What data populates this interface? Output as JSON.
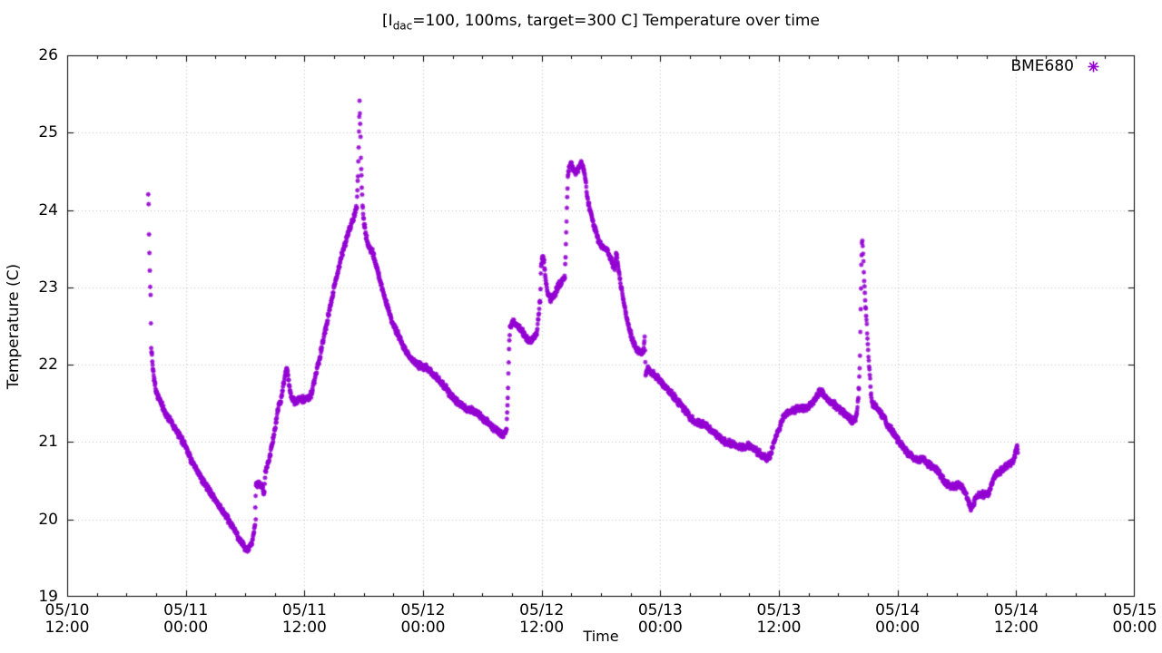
{
  "title": {
    "pre": "[I",
    "sub": "dac",
    "post": "=100, 100ms, target=300 C] Temperature over time"
  },
  "legend": {
    "label": "BME680",
    "marker": "asterisk-icon"
  },
  "colors": {
    "marker": "#9400d3",
    "grid": "#c4c4c4",
    "axis": "#000000",
    "background": "#ffffff",
    "text": "#000000"
  },
  "axes": {
    "x": {
      "label": "Time",
      "range_hours": [
        0,
        108
      ],
      "major_step_hours": 12,
      "minor_step_hours": 3,
      "ticks": [
        {
          "t": 0,
          "line1": "05/10",
          "line2": "12:00"
        },
        {
          "t": 12,
          "line1": "05/11",
          "line2": "00:00"
        },
        {
          "t": 24,
          "line1": "05/11",
          "line2": "12:00"
        },
        {
          "t": 36,
          "line1": "05/12",
          "line2": "00:00"
        },
        {
          "t": 48,
          "line1": "05/12",
          "line2": "12:00"
        },
        {
          "t": 60,
          "line1": "05/13",
          "line2": "00:00"
        },
        {
          "t": 72,
          "line1": "05/13",
          "line2": "12:00"
        },
        {
          "t": 84,
          "line1": "05/14",
          "line2": "00:00"
        },
        {
          "t": 96,
          "line1": "05/14",
          "line2": "12:00"
        },
        {
          "t": 108,
          "line1": "05/15",
          "line2": "00:00"
        }
      ]
    },
    "y": {
      "label": "Temperature (C)",
      "range": [
        19,
        26
      ],
      "ticks": [
        "19",
        "20",
        "21",
        "22",
        "23",
        "24",
        "25",
        "26"
      ]
    }
  },
  "chart_data": {
    "type": "scatter",
    "title": "[I_dac=100, 100ms, target=300 C] Temperature over time",
    "xlabel": "Time",
    "ylabel": "Temperature (C)",
    "x_unit": "hours since 05/10 12:00",
    "xlim_hours": [
      0,
      108
    ],
    "ylim": [
      19,
      26
    ],
    "grid": "dotted",
    "legend_position": "top-right-inside",
    "series": [
      {
        "name": "BME680",
        "color": "#9400d3",
        "marker": "asterisk",
        "keypoints": [
          [
            8.2,
            24.2
          ],
          [
            8.24,
            24.05
          ],
          [
            8.28,
            23.7
          ],
          [
            8.32,
            23.45
          ],
          [
            8.36,
            23.2
          ],
          [
            8.4,
            23.0
          ],
          [
            8.44,
            22.9
          ],
          [
            8.5,
            22.2
          ],
          [
            8.58,
            22.15
          ],
          [
            8.64,
            22.0
          ],
          [
            8.72,
            21.9
          ],
          [
            9.0,
            21.65
          ],
          [
            9.5,
            21.5
          ],
          [
            10.0,
            21.35
          ],
          [
            10.5,
            21.28
          ],
          [
            11.0,
            21.15
          ],
          [
            11.5,
            21.05
          ],
          [
            12.0,
            20.95
          ],
          [
            12.5,
            20.78
          ],
          [
            13.0,
            20.65
          ],
          [
            13.5,
            20.55
          ],
          [
            14.0,
            20.45
          ],
          [
            14.5,
            20.35
          ],
          [
            15.0,
            20.25
          ],
          [
            15.5,
            20.15
          ],
          [
            16.0,
            20.05
          ],
          [
            16.5,
            19.95
          ],
          [
            17.0,
            19.85
          ],
          [
            17.4,
            19.75
          ],
          [
            17.8,
            19.66
          ],
          [
            18.1,
            19.6
          ],
          [
            18.4,
            19.62
          ],
          [
            18.7,
            19.72
          ],
          [
            18.9,
            19.85
          ],
          [
            19.0,
            19.95
          ],
          [
            19.1,
            20.45
          ],
          [
            19.4,
            20.46
          ],
          [
            19.7,
            20.42
          ],
          [
            19.95,
            20.35
          ],
          [
            20.05,
            20.62
          ],
          [
            20.3,
            20.72
          ],
          [
            20.6,
            20.88
          ],
          [
            20.9,
            21.08
          ],
          [
            21.2,
            21.32
          ],
          [
            21.4,
            21.48
          ],
          [
            21.6,
            21.52
          ],
          [
            21.8,
            21.68
          ],
          [
            22.0,
            21.82
          ],
          [
            22.2,
            21.95
          ],
          [
            22.35,
            21.88
          ],
          [
            22.5,
            21.7
          ],
          [
            22.65,
            21.58
          ],
          [
            23.0,
            21.52
          ],
          [
            23.5,
            21.55
          ],
          [
            24.0,
            21.55
          ],
          [
            24.4,
            21.57
          ],
          [
            24.7,
            21.62
          ],
          [
            25.0,
            21.78
          ],
          [
            25.4,
            22.0
          ],
          [
            25.8,
            22.25
          ],
          [
            26.2,
            22.5
          ],
          [
            26.6,
            22.75
          ],
          [
            27.0,
            23.0
          ],
          [
            27.4,
            23.22
          ],
          [
            27.8,
            23.42
          ],
          [
            28.2,
            23.6
          ],
          [
            28.6,
            23.78
          ],
          [
            29.0,
            23.92
          ],
          [
            29.3,
            24.05
          ],
          [
            29.42,
            24.45
          ],
          [
            29.52,
            25.0
          ],
          [
            29.58,
            25.4
          ],
          [
            29.64,
            25.12
          ],
          [
            29.72,
            24.7
          ],
          [
            29.8,
            24.3
          ],
          [
            29.88,
            24.05
          ],
          [
            30.0,
            23.85
          ],
          [
            30.3,
            23.62
          ],
          [
            30.6,
            23.5
          ],
          [
            30.9,
            23.45
          ],
          [
            31.2,
            23.32
          ],
          [
            31.6,
            23.12
          ],
          [
            32.0,
            22.92
          ],
          [
            32.5,
            22.7
          ],
          [
            33.0,
            22.52
          ],
          [
            33.5,
            22.38
          ],
          [
            34.0,
            22.25
          ],
          [
            34.5,
            22.12
          ],
          [
            35.0,
            22.05
          ],
          [
            35.5,
            22.0
          ],
          [
            36.0,
            21.97
          ],
          [
            36.6,
            21.95
          ],
          [
            37.2,
            21.85
          ],
          [
            37.8,
            21.78
          ],
          [
            38.4,
            21.68
          ],
          [
            39.0,
            21.58
          ],
          [
            39.6,
            21.5
          ],
          [
            40.2,
            21.45
          ],
          [
            40.8,
            21.42
          ],
          [
            41.4,
            21.38
          ],
          [
            42.0,
            21.3
          ],
          [
            42.6,
            21.25
          ],
          [
            43.2,
            21.18
          ],
          [
            43.7,
            21.12
          ],
          [
            44.1,
            21.1
          ],
          [
            44.45,
            21.18
          ],
          [
            44.6,
            21.7
          ],
          [
            44.7,
            22.2
          ],
          [
            44.8,
            22.48
          ],
          [
            45.1,
            22.55
          ],
          [
            45.5,
            22.52
          ],
          [
            45.9,
            22.45
          ],
          [
            46.3,
            22.38
          ],
          [
            46.7,
            22.3
          ],
          [
            47.1,
            22.33
          ],
          [
            47.5,
            22.4
          ],
          [
            47.85,
            22.85
          ],
          [
            47.95,
            23.3
          ],
          [
            48.1,
            23.4
          ],
          [
            48.25,
            23.32
          ],
          [
            48.45,
            23.05
          ],
          [
            48.65,
            22.9
          ],
          [
            48.95,
            22.85
          ],
          [
            49.25,
            22.9
          ],
          [
            49.55,
            22.98
          ],
          [
            49.85,
            23.05
          ],
          [
            50.15,
            23.1
          ],
          [
            50.35,
            23.12
          ],
          [
            50.45,
            23.55
          ],
          [
            50.55,
            24.0
          ],
          [
            50.65,
            24.45
          ],
          [
            50.8,
            24.55
          ],
          [
            51.0,
            24.6
          ],
          [
            51.25,
            24.52
          ],
          [
            51.5,
            24.48
          ],
          [
            51.75,
            24.55
          ],
          [
            52.0,
            24.6
          ],
          [
            52.25,
            24.52
          ],
          [
            52.45,
            24.4
          ],
          [
            52.6,
            24.15
          ],
          [
            52.9,
            24.0
          ],
          [
            53.2,
            23.85
          ],
          [
            53.5,
            23.7
          ],
          [
            53.8,
            23.58
          ],
          [
            54.2,
            23.52
          ],
          [
            54.6,
            23.48
          ],
          [
            54.9,
            23.4
          ],
          [
            55.2,
            23.3
          ],
          [
            55.4,
            23.25
          ],
          [
            55.55,
            23.45
          ],
          [
            55.7,
            23.3
          ],
          [
            56.0,
            23.05
          ],
          [
            56.3,
            22.82
          ],
          [
            56.6,
            22.6
          ],
          [
            56.9,
            22.45
          ],
          [
            57.2,
            22.32
          ],
          [
            57.5,
            22.22
          ],
          [
            57.8,
            22.17
          ],
          [
            58.1,
            22.15
          ],
          [
            58.3,
            22.18
          ],
          [
            58.42,
            22.35
          ],
          [
            58.52,
            21.88
          ],
          [
            58.75,
            21.95
          ],
          [
            59.0,
            21.92
          ],
          [
            59.4,
            21.86
          ],
          [
            59.8,
            21.82
          ],
          [
            60.2,
            21.76
          ],
          [
            60.6,
            21.7
          ],
          [
            61.0,
            21.64
          ],
          [
            61.4,
            21.58
          ],
          [
            61.8,
            21.52
          ],
          [
            62.2,
            21.46
          ],
          [
            62.6,
            21.4
          ],
          [
            63.0,
            21.32
          ],
          [
            63.4,
            21.27
          ],
          [
            63.8,
            21.25
          ],
          [
            64.2,
            21.24
          ],
          [
            64.6,
            21.21
          ],
          [
            65.0,
            21.17
          ],
          [
            65.4,
            21.12
          ],
          [
            65.8,
            21.08
          ],
          [
            66.2,
            21.03
          ],
          [
            66.6,
            21.0
          ],
          [
            67.0,
            20.98
          ],
          [
            67.4,
            20.96
          ],
          [
            67.8,
            20.95
          ],
          [
            68.2,
            20.94
          ],
          [
            68.6,
            20.93
          ],
          [
            68.9,
            20.97
          ],
          [
            69.2,
            20.95
          ],
          [
            69.6,
            20.9
          ],
          [
            70.0,
            20.86
          ],
          [
            70.4,
            20.81
          ],
          [
            70.8,
            20.79
          ],
          [
            71.1,
            20.83
          ],
          [
            71.4,
            20.95
          ],
          [
            71.7,
            21.06
          ],
          [
            72.0,
            21.16
          ],
          [
            72.3,
            21.28
          ],
          [
            72.6,
            21.35
          ],
          [
            73.0,
            21.39
          ],
          [
            73.5,
            21.41
          ],
          [
            74.0,
            21.43
          ],
          [
            74.5,
            21.44
          ],
          [
            75.0,
            21.46
          ],
          [
            75.4,
            21.51
          ],
          [
            75.7,
            21.56
          ],
          [
            76.0,
            21.62
          ],
          [
            76.25,
            21.66
          ],
          [
            76.5,
            21.62
          ],
          [
            76.8,
            21.56
          ],
          [
            77.1,
            21.53
          ],
          [
            77.5,
            21.5
          ],
          [
            77.9,
            21.46
          ],
          [
            78.3,
            21.41
          ],
          [
            78.7,
            21.36
          ],
          [
            79.1,
            21.31
          ],
          [
            79.45,
            21.26
          ],
          [
            79.75,
            21.3
          ],
          [
            79.95,
            21.45
          ],
          [
            80.1,
            21.72
          ],
          [
            80.2,
            22.1
          ],
          [
            80.28,
            22.7
          ],
          [
            80.34,
            23.3
          ],
          [
            80.4,
            23.6
          ],
          [
            80.48,
            23.55
          ],
          [
            80.56,
            23.3
          ],
          [
            80.66,
            23.0
          ],
          [
            80.76,
            22.78
          ],
          [
            80.86,
            22.56
          ],
          [
            80.96,
            22.35
          ],
          [
            81.06,
            22.08
          ],
          [
            81.16,
            21.95
          ],
          [
            81.3,
            21.62
          ],
          [
            81.5,
            21.5
          ],
          [
            81.8,
            21.46
          ],
          [
            82.1,
            21.42
          ],
          [
            82.4,
            21.36
          ],
          [
            82.7,
            21.3
          ],
          [
            83.0,
            21.22
          ],
          [
            83.4,
            21.15
          ],
          [
            83.8,
            21.08
          ],
          [
            84.2,
            21.0
          ],
          [
            84.6,
            20.92
          ],
          [
            85.0,
            20.86
          ],
          [
            85.4,
            20.81
          ],
          [
            85.8,
            20.77
          ],
          [
            86.1,
            20.76
          ],
          [
            86.4,
            20.79
          ],
          [
            86.7,
            20.76
          ],
          [
            87.0,
            20.73
          ],
          [
            87.4,
            20.7
          ],
          [
            87.8,
            20.66
          ],
          [
            88.2,
            20.6
          ],
          [
            88.6,
            20.52
          ],
          [
            89.0,
            20.46
          ],
          [
            89.4,
            20.43
          ],
          [
            89.8,
            20.41
          ],
          [
            90.1,
            20.45
          ],
          [
            90.4,
            20.43
          ],
          [
            90.7,
            20.39
          ],
          [
            91.0,
            20.3
          ],
          [
            91.2,
            20.21
          ],
          [
            91.45,
            20.15
          ],
          [
            91.7,
            20.2
          ],
          [
            91.9,
            20.27
          ],
          [
            92.2,
            20.31
          ],
          [
            92.6,
            20.33
          ],
          [
            93.0,
            20.31
          ],
          [
            93.3,
            20.36
          ],
          [
            93.55,
            20.48
          ],
          [
            93.8,
            20.57
          ],
          [
            94.1,
            20.6
          ],
          [
            94.4,
            20.62
          ],
          [
            94.7,
            20.65
          ],
          [
            95.0,
            20.68
          ],
          [
            95.3,
            20.71
          ],
          [
            95.6,
            20.74
          ],
          [
            95.85,
            20.8
          ],
          [
            96.0,
            20.9
          ],
          [
            96.1,
            20.93
          ],
          [
            96.2,
            20.87
          ]
        ],
        "outliers": [
          [
            19.08,
            20.0
          ]
        ]
      }
    ]
  }
}
